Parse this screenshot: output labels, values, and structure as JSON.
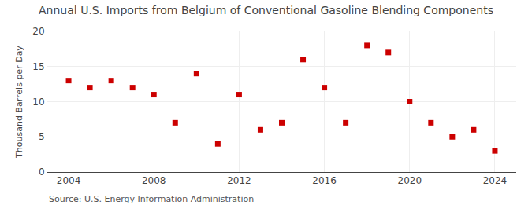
{
  "chart_data": {
    "type": "scatter",
    "title": "Annual U.S. Imports from Belgium of Conventional Gasoline Blending Components",
    "ylabel": "Thousand Barrels per Day",
    "annotations": [
      "Source: U.S. Energy Information Administration"
    ],
    "x": [
      2004,
      2005,
      2006,
      2007,
      2008,
      2009,
      2010,
      2011,
      2012,
      2013,
      2014,
      2015,
      2016,
      2017,
      2018,
      2019,
      2020,
      2021,
      2022,
      2023,
      2024
    ],
    "values": [
      13.0,
      12.0,
      13.0,
      12.0,
      11.0,
      7.0,
      14.0,
      4.0,
      11.0,
      6.0,
      7.0,
      16.0,
      12.0,
      7.0,
      18.0,
      17.0,
      10.0,
      7.0,
      5.0,
      6.0,
      3.0
    ],
    "color": "#cc0000",
    "marker": "square",
    "xlim": [
      2003.0,
      2025.0
    ],
    "ylim": [
      0,
      20
    ],
    "xticks": [
      2004,
      2008,
      2012,
      2016,
      2020,
      2024
    ],
    "yticks": [
      0,
      5,
      10,
      15,
      20
    ],
    "grid": true
  }
}
